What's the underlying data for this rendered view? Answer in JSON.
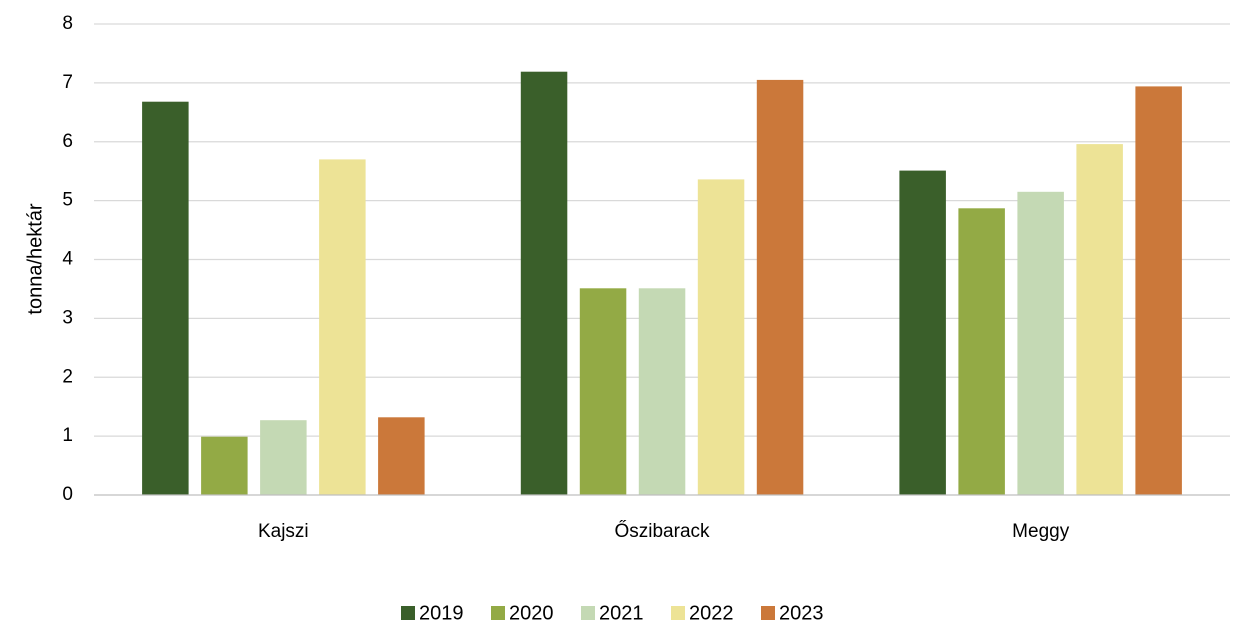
{
  "chart_data": {
    "type": "bar",
    "title": "",
    "xlabel": "",
    "ylabel": "tonna/hektár",
    "ylim": [
      0,
      8
    ],
    "yticks": [
      0,
      1,
      2,
      3,
      4,
      5,
      6,
      7,
      8
    ],
    "grid": true,
    "legend_position": "bottom",
    "categories": [
      "Kajszi",
      "Őszibarack",
      "Meggy"
    ],
    "series": [
      {
        "name": "2019",
        "color": "#3a5f2a",
        "values": [
          6.68,
          7.19,
          5.51
        ]
      },
      {
        "name": "2020",
        "color": "#93aa45",
        "values": [
          0.99,
          3.51,
          4.87
        ]
      },
      {
        "name": "2021",
        "color": "#c4d9b4",
        "values": [
          1.27,
          3.51,
          5.15
        ]
      },
      {
        "name": "2022",
        "color": "#ede396",
        "values": [
          5.7,
          5.36,
          5.96
        ]
      },
      {
        "name": "2023",
        "color": "#cb783a",
        "values": [
          1.32,
          7.05,
          6.94
        ]
      }
    ]
  }
}
